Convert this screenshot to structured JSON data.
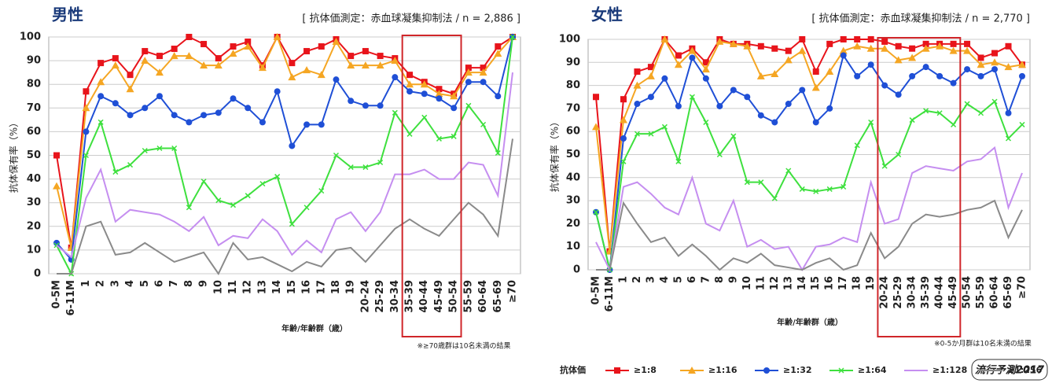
{
  "chart_data": [
    {
      "type": "line",
      "title": "男性",
      "subtitle": "[ 抗体価測定：赤血球凝集抑制法 / n = 2,886 ]",
      "y_label": "抗体保有率（%）",
      "x_label": "年齢/年齢群（歳）",
      "note": "※≥70歳群は10名未満の結果",
      "categories": [
        "0-5M",
        "6-11M",
        "1",
        "2",
        "3",
        "4",
        "5",
        "6",
        "7",
        "8",
        "9",
        "10",
        "11",
        "12",
        "13",
        "14",
        "15",
        "16",
        "17",
        "18",
        "19",
        "20-24",
        "25-29",
        "30-34",
        "35-39",
        "40-44",
        "45-49",
        "50-54",
        "55-59",
        "60-64",
        "65-69",
        "≥70"
      ],
      "ylim": [
        0,
        100
      ],
      "yticks": [
        0,
        10,
        20,
        30,
        40,
        50,
        60,
        70,
        80,
        90,
        100
      ],
      "grid": true,
      "series": [
        {
          "color": "#e8141b",
          "marker": "square",
          "values": [
            50,
            11,
            77,
            89,
            91,
            84,
            94,
            92,
            95,
            100,
            97,
            91,
            96,
            98,
            88,
            100,
            89,
            94,
            96,
            99,
            92,
            94,
            92,
            91,
            84,
            81,
            78,
            76,
            87,
            87,
            96,
            100
          ]
        },
        {
          "color": "#f5a623",
          "marker": "triangle",
          "values": [
            37,
            11,
            70,
            81,
            88,
            78,
            90,
            85,
            92,
            92,
            88,
            88,
            93,
            96,
            87,
            100,
            83,
            86,
            84,
            98,
            88,
            88,
            88,
            90,
            80,
            80,
            76,
            75,
            85,
            85,
            93,
            100
          ]
        },
        {
          "color": "#1f4fd6",
          "marker": "circle",
          "values": [
            13,
            6,
            60,
            75,
            72,
            67,
            70,
            75,
            67,
            64,
            67,
            68,
            74,
            70,
            64,
            77,
            54,
            63,
            63,
            82,
            73,
            71,
            71,
            83,
            77,
            76,
            74,
            70,
            81,
            81,
            75,
            100
          ]
        },
        {
          "color": "#3ee03e",
          "marker": "x",
          "values": [
            12,
            0,
            50,
            64,
            43,
            46,
            52,
            53,
            53,
            28,
            39,
            31,
            29,
            33,
            38,
            41,
            21,
            28,
            35,
            50,
            45,
            45,
            47,
            68,
            59,
            66,
            57,
            58,
            71,
            63,
            51,
            100
          ]
        },
        {
          "color": "#c58ef0",
          "marker": "none",
          "values": [
            12,
            7,
            32,
            44,
            22,
            27,
            26,
            25,
            22,
            18,
            24,
            12,
            16,
            15,
            23,
            18,
            8,
            14,
            9,
            23,
            26,
            18,
            26,
            42,
            42,
            44,
            40,
            40,
            47,
            46,
            33,
            85
          ]
        },
        {
          "color": "#8a8a8a",
          "marker": "none",
          "values": [
            0,
            0,
            20,
            22,
            8,
            9,
            13,
            9,
            5,
            7,
            9,
            0,
            13,
            6,
            7,
            4,
            1,
            5,
            3,
            10,
            11,
            5,
            12,
            19,
            23,
            19,
            16,
            23,
            30,
            25,
            16,
            57
          ]
        }
      ]
    },
    {
      "type": "line",
      "title": "女性",
      "subtitle": "[ 抗体価測定：赤血球凝集抑制法 / n = 2,770 ]",
      "y_label": "抗体保有率（%）",
      "x_label": "年齢/年齢群（歳）",
      "note": "※0-5か月群は10名未満の結果",
      "categories": [
        "0-5M",
        "6-11M",
        "1",
        "2",
        "3",
        "4",
        "5",
        "6",
        "7",
        "8",
        "9",
        "10",
        "11",
        "12",
        "13",
        "14",
        "15",
        "16",
        "17",
        "18",
        "19",
        "20-24",
        "25-29",
        "30-34",
        "35-39",
        "40-44",
        "45-49",
        "50-54",
        "55-59",
        "60-64",
        "65-69",
        "≥70"
      ],
      "ylim": [
        0,
        100
      ],
      "yticks": [
        0,
        10,
        20,
        30,
        40,
        50,
        60,
        70,
        80,
        90,
        100
      ],
      "grid": true,
      "series": [
        {
          "name": "≥1:8",
          "color": "#e8141b",
          "marker": "square",
          "values": [
            75,
            8,
            74,
            86,
            88,
            100,
            93,
            96,
            90,
            100,
            98,
            98,
            97,
            96,
            95,
            100,
            86,
            98,
            100,
            100,
            100,
            99,
            97,
            96,
            98,
            98,
            98,
            98,
            92,
            94,
            97,
            89
          ]
        },
        {
          "name": "≥1:16",
          "color": "#f5a623",
          "marker": "triangle",
          "values": [
            62,
            8,
            65,
            80,
            84,
            100,
            89,
            95,
            87,
            99,
            98,
            97,
            84,
            85,
            91,
            95,
            79,
            86,
            95,
            97,
            96,
            96,
            91,
            92,
            96,
            97,
            95,
            95,
            89,
            90,
            88,
            89
          ]
        },
        {
          "name": "≥1:32",
          "color": "#1f4fd6",
          "marker": "circle",
          "values": [
            25,
            0,
            57,
            72,
            75,
            83,
            71,
            92,
            83,
            71,
            78,
            75,
            67,
            64,
            72,
            78,
            64,
            70,
            93,
            84,
            89,
            80,
            76,
            84,
            88,
            84,
            81,
            87,
            84,
            87,
            68,
            84
          ]
        },
        {
          "name": "≥1:64",
          "color": "#3ee03e",
          "marker": "x",
          "values": [
            25,
            0,
            47,
            59,
            59,
            62,
            47,
            75,
            64,
            50,
            58,
            38,
            38,
            31,
            43,
            35,
            34,
            35,
            36,
            54,
            64,
            45,
            50,
            65,
            69,
            68,
            63,
            72,
            68,
            73,
            57,
            63
          ]
        },
        {
          "name": "≥1:128",
          "color": "#c58ef0",
          "marker": "none",
          "values": [
            12,
            0,
            36,
            38,
            33,
            27,
            24,
            40,
            20,
            17,
            30,
            10,
            13,
            9,
            10,
            0,
            10,
            11,
            14,
            12,
            38,
            20,
            22,
            42,
            45,
            44,
            43,
            47,
            48,
            53,
            27,
            42
          ]
        },
        {
          "name": "≥1:256",
          "color": "#8a8a8a",
          "marker": "none",
          "values": [
            0,
            0,
            29,
            20,
            12,
            14,
            6,
            11,
            6,
            0,
            5,
            3,
            7,
            2,
            1,
            0,
            3,
            5,
            0,
            2,
            16,
            5,
            10,
            20,
            24,
            23,
            24,
            26,
            27,
            30,
            14,
            26
          ]
        }
      ]
    }
  ],
  "legend_title": "抗体価",
  "logo": "流行予測2017"
}
